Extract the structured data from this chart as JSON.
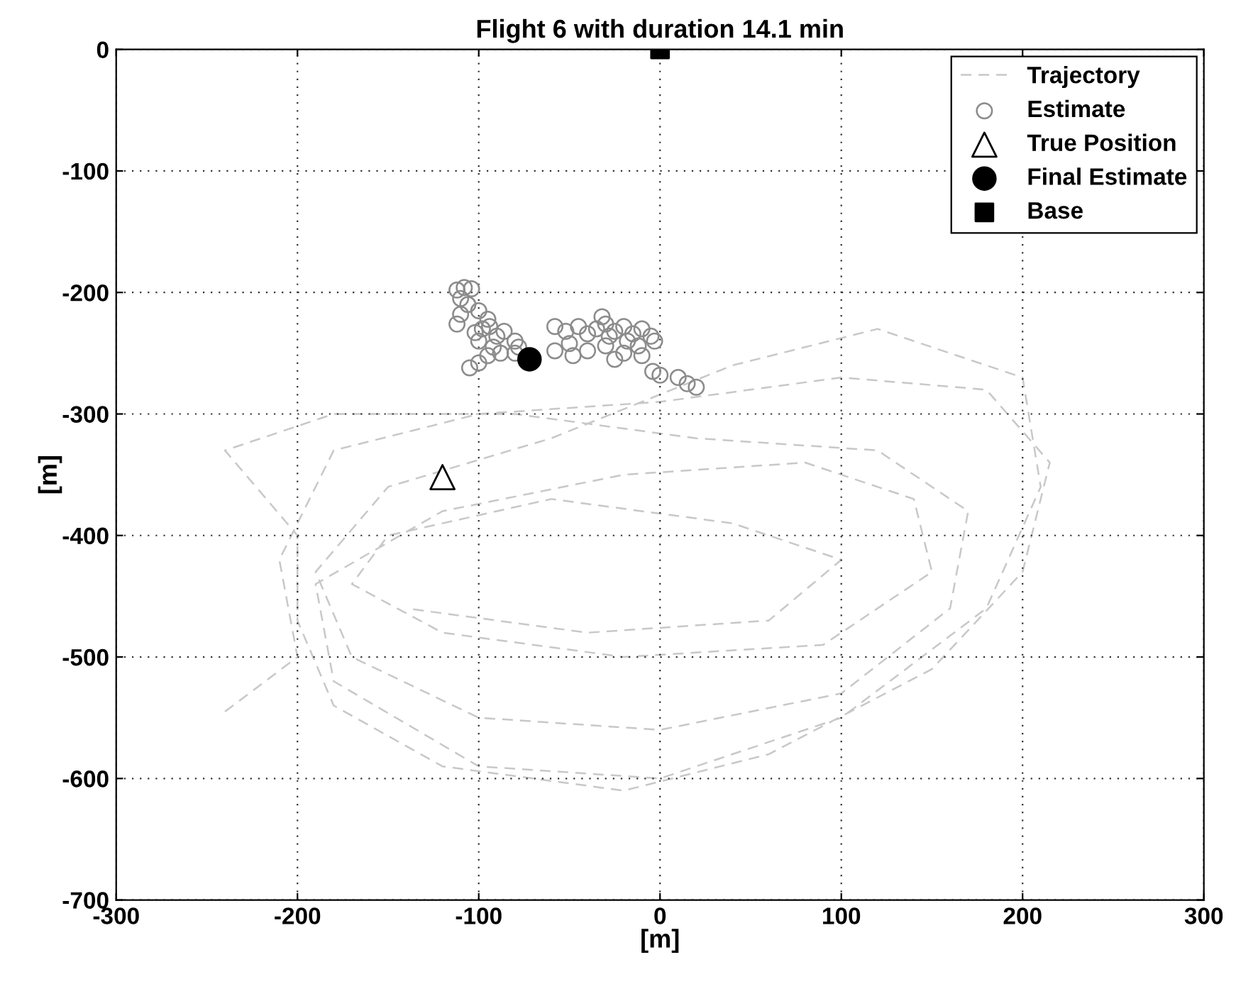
{
  "chart_data": {
    "type": "scatter",
    "title": "Flight 6 with duration 14.1 min",
    "xlabel": "[m]",
    "ylabel": "[m]",
    "xlim": [
      -300,
      300
    ],
    "ylim": [
      -700,
      0
    ],
    "xticks": [
      -300,
      -200,
      -100,
      0,
      100,
      200,
      300
    ],
    "yticks": [
      -700,
      -600,
      -500,
      -400,
      -300,
      -200,
      -100,
      0
    ],
    "grid": true,
    "legend": "top right",
    "series": [
      {
        "name": "Trajectory",
        "type": "line",
        "line_style": "dashed",
        "marker": "none",
        "color": "#c8c8c8",
        "x": [
          -240,
          -200,
          -210,
          -180,
          -100,
          0,
          100,
          180,
          215,
          200,
          150,
          60,
          -20,
          -120,
          -180,
          -200,
          -200,
          -240,
          -180,
          -80,
          20,
          120,
          170,
          160,
          100,
          0,
          -100,
          -170,
          -190,
          -150,
          -60,
          40,
          120,
          200,
          210,
          180,
          100,
          0,
          -100,
          -180,
          -190,
          -120,
          -20,
          80,
          140,
          150,
          90,
          -20,
          -120,
          -170,
          -150,
          -60,
          40,
          100,
          60,
          -40,
          -140
        ],
        "values": [
          -545,
          -500,
          -420,
          -330,
          -300,
          -290,
          -270,
          -280,
          -340,
          -430,
          -510,
          -580,
          -610,
          -590,
          -540,
          -470,
          -400,
          -330,
          -300,
          -300,
          -320,
          -330,
          -380,
          -460,
          -530,
          -560,
          -550,
          -500,
          -430,
          -360,
          -320,
          -260,
          -230,
          -270,
          -360,
          -460,
          -550,
          -600,
          -590,
          -520,
          -440,
          -380,
          -350,
          -340,
          -370,
          -430,
          -490,
          -500,
          -480,
          -440,
          -400,
          -370,
          -390,
          -420,
          -470,
          -480,
          -460
        ]
      },
      {
        "name": "Estimate",
        "marker": "circle",
        "color": "#8c8c8c",
        "x": [
          -112,
          -108,
          -104,
          -110,
          -106,
          -100,
          -110,
          -95,
          -112,
          -98,
          -90,
          -100,
          -92,
          -80,
          -95,
          -88,
          -100,
          -105,
          -80,
          -86,
          -78,
          -102,
          -94,
          -58,
          -52,
          -45,
          -40,
          -35,
          -30,
          -25,
          -20,
          -15,
          -10,
          -5,
          -12,
          -20,
          -30,
          -40,
          -50,
          -58,
          -48,
          -25,
          -10,
          -3,
          -32,
          -28,
          -18,
          -4,
          0,
          15,
          20,
          10
        ],
        "values": [
          -198,
          -196,
          -197,
          -205,
          -210,
          -215,
          -218,
          -222,
          -226,
          -230,
          -236,
          -240,
          -245,
          -240,
          -252,
          -250,
          -258,
          -262,
          -250,
          -232,
          -245,
          -233,
          -228,
          -228,
          -232,
          -228,
          -234,
          -230,
          -226,
          -232,
          -228,
          -234,
          -230,
          -236,
          -244,
          -250,
          -244,
          -248,
          -242,
          -248,
          -252,
          -255,
          -252,
          -240,
          -220,
          -236,
          -240,
          -265,
          -268,
          -275,
          -278,
          -270
        ]
      },
      {
        "name": "True Position",
        "marker": "triangle",
        "color": "#000000",
        "x": [
          -120
        ],
        "values": [
          -352
        ]
      },
      {
        "name": "Final Estimate",
        "marker": "circle",
        "color": "#000000",
        "x": [
          -72
        ],
        "values": [
          -255
        ]
      },
      {
        "name": "Base",
        "marker": "square",
        "color": "#000000",
        "x": [
          0
        ],
        "values": [
          0
        ]
      }
    ]
  }
}
